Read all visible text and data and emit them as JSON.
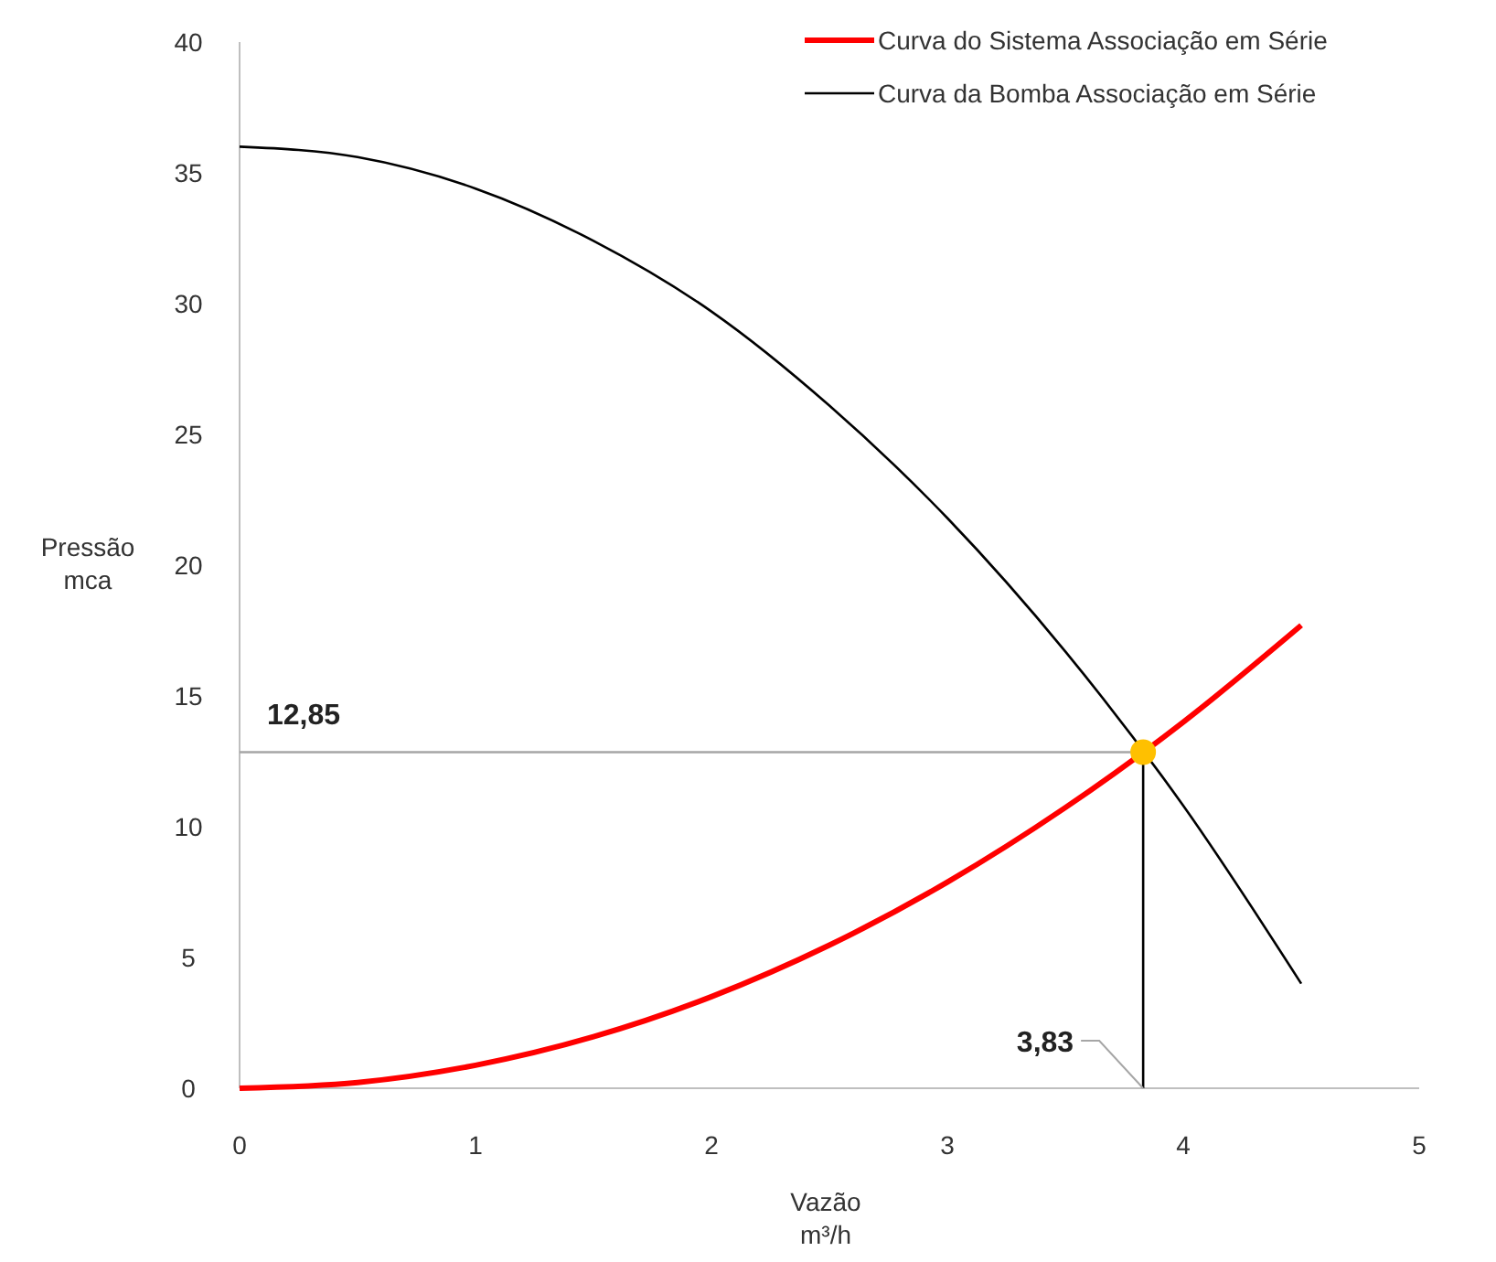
{
  "chart_data": {
    "type": "line",
    "xlabel": "Vazão\nm³/h",
    "ylabel": "Pressão\nmca",
    "x": [
      0,
      0.5,
      1,
      1.5,
      2,
      2.5,
      3,
      3.5,
      4,
      4.5
    ],
    "xlim": [
      0,
      5
    ],
    "xticks": [
      0,
      1,
      2,
      3,
      4,
      5
    ],
    "ylim": [
      0,
      40
    ],
    "yticks": [
      0,
      5,
      10,
      15,
      20,
      25,
      30,
      35,
      40
    ],
    "grid": false,
    "legend": "top right",
    "marker": "none",
    "line_style": "solid",
    "series": [
      {
        "name": "Curva do Sistema Associação em Série",
        "color": "#ff0000",
        "values": [
          0,
          0.22,
          0.88,
          1.97,
          3.5,
          5.47,
          7.88,
          10.73,
          14.0,
          17.7
        ]
      },
      {
        "name": "Curva da Bomba Associação em Série",
        "color": "#000000",
        "values": [
          36,
          35.6,
          34.4,
          32.4,
          29.7,
          26.1,
          21.8,
          16.7,
          10.8,
          4.0
        ]
      },
      {
        "type": "scatter",
        "color": "#ffc000",
        "x": [
          3.83
        ],
        "values": [
          12.85
        ],
        "marker": "circle"
      }
    ],
    "ref_lines": [
      {
        "axis": "y",
        "value": 12.85,
        "label": "12,85",
        "color": "#a6a6a6"
      },
      {
        "axis": "x",
        "value": 3.83,
        "label": "3,83",
        "color": "#000000"
      }
    ]
  }
}
